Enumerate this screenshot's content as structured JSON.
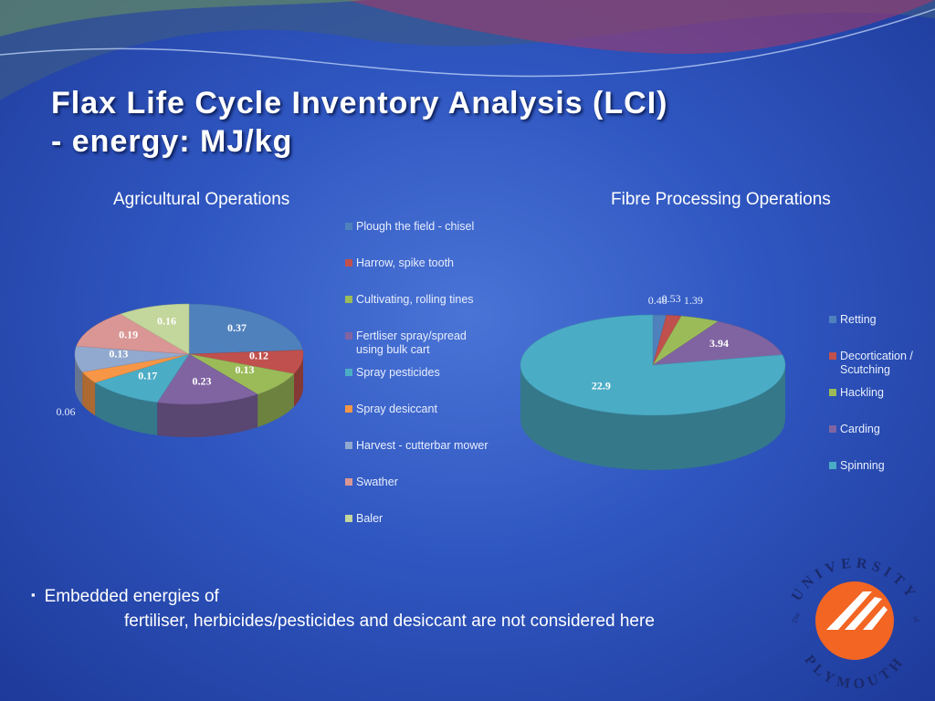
{
  "slide": {
    "title_lines": [
      "Flax  Life Cycle Inventory Analysis (LCI)",
      "- energy: MJ/kg"
    ],
    "bullet": {
      "marker": "▪",
      "lines": [
        "Embedded energies of",
        "fertiliser, herbicides/pesticides and desiccant are not considered here"
      ]
    },
    "logo": {
      "top": "UNIVERSITY",
      "bottom": "PLYMOUTH",
      "the": "The",
      "of": "of"
    }
  },
  "chart_data": [
    {
      "type": "pie",
      "title": "Agricultural Operations",
      "categories": [
        "Plough the field - chisel",
        "Harrow, spike tooth",
        "Cultivating, rolling tines",
        "Fertliser spray/spread using bulk cart",
        "Spray pesticides",
        "Spray desiccant",
        "Harvest -  cutterbar mower",
        "Swather",
        "Baler"
      ],
      "values": [
        0.37,
        0.12,
        0.13,
        0.23,
        0.17,
        0.06,
        0.13,
        0.19,
        0.16
      ],
      "colors": [
        "#4f81bd",
        "#c0504d",
        "#9bbb59",
        "#8064a2",
        "#4bacc6",
        "#f79646",
        "#92a9cf",
        "#d99694",
        "#c3d69b"
      ],
      "legend": "right"
    },
    {
      "type": "pie",
      "title": "Fibre Processing Operations",
      "categories": [
        "Retting",
        "Decortication / Scutching",
        "Hackling",
        "Carding",
        "Spinning"
      ],
      "values": [
        0.48,
        0.53,
        1.39,
        3.94,
        22.9
      ],
      "colors": [
        "#4f81bd",
        "#c0504d",
        "#9bbb59",
        "#8064a2",
        "#4bacc6"
      ],
      "legend": "right"
    }
  ]
}
